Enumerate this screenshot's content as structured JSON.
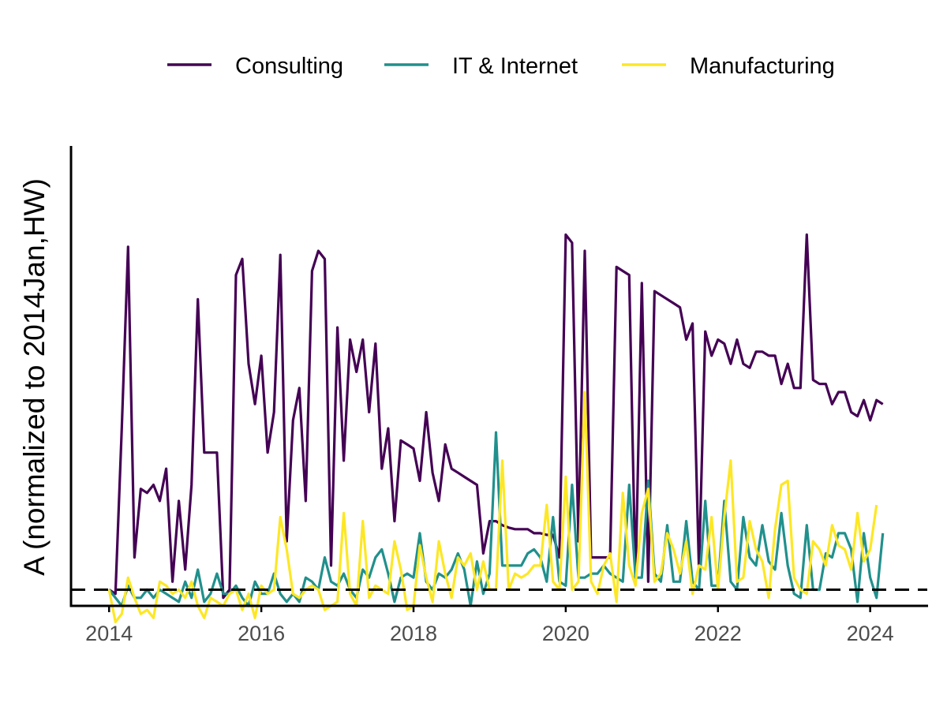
{
  "chart_data": {
    "type": "line",
    "title": "",
    "xlabel": "",
    "ylabel": "A (normalized to 2014Jan,HW)",
    "xlim": [
      2013.5,
      2024.75
    ],
    "ylim": [
      -0.2,
      5.5
    ],
    "x_ticks": [
      2014,
      2016,
      2018,
      2020,
      2022,
      2024
    ],
    "x_tick_labels": [
      "2014",
      "2016",
      "2018",
      "2020",
      "2022",
      "2024"
    ],
    "baseline": 0,
    "legend_position": "top",
    "grid": false,
    "x_start": 2014.0,
    "x_step": 0.0833333,
    "series": [
      {
        "name": "Consulting",
        "color": "#440154",
        "values": [
          0.0,
          -0.05,
          2.0,
          4.25,
          0.4,
          1.25,
          1.2,
          1.3,
          1.1,
          1.5,
          0.1,
          1.1,
          0.25,
          1.3,
          3.6,
          1.7,
          1.7,
          1.7,
          -0.1,
          0.0,
          3.9,
          4.1,
          2.8,
          2.3,
          2.9,
          1.7,
          2.2,
          4.15,
          0.6,
          2.1,
          2.5,
          1.1,
          3.95,
          4.2,
          4.1,
          0.3,
          3.25,
          1.6,
          3.1,
          2.7,
          3.1,
          2.2,
          3.05,
          1.5,
          2.0,
          0.85,
          1.85,
          1.8,
          1.75,
          1.35,
          2.2,
          1.45,
          1.1,
          1.8,
          1.5,
          1.45,
          1.4,
          1.35,
          1.3,
          0.45,
          0.85,
          0.85,
          0.8,
          0.77,
          0.75,
          0.75,
          0.75,
          0.7,
          0.7,
          0.68,
          0.68,
          0.4,
          4.4,
          4.3,
          0.6,
          4.2,
          0.4,
          0.4,
          0.4,
          0.4,
          4.0,
          3.95,
          3.9,
          0.1,
          3.8,
          0.1,
          3.7,
          3.65,
          3.6,
          3.55,
          3.5,
          3.1,
          3.3,
          0.25,
          3.2,
          2.9,
          3.1,
          3.05,
          2.8,
          3.1,
          2.8,
          2.75,
          2.95,
          2.95,
          2.9,
          2.9,
          2.55,
          2.8,
          2.5,
          2.5,
          4.4,
          2.6,
          2.55,
          2.55,
          2.3,
          2.45,
          2.45,
          2.2,
          2.15,
          2.35,
          2.1,
          2.35,
          2.3
        ]
      },
      {
        "name": "IT & Internet",
        "color": "#21908C",
        "values": [
          0.0,
          -0.1,
          -0.2,
          0.05,
          -0.1,
          -0.1,
          0.0,
          -0.1,
          0.0,
          -0.05,
          -0.1,
          -0.15,
          0.1,
          -0.1,
          0.25,
          -0.15,
          -0.05,
          0.2,
          -0.05,
          -0.05,
          0.05,
          -0.1,
          -0.2,
          0.1,
          -0.05,
          -0.05,
          0.2,
          -0.05,
          -0.15,
          -0.05,
          -0.15,
          0.15,
          0.1,
          0.0,
          0.4,
          0.1,
          0.05,
          0.2,
          0.0,
          -0.1,
          0.25,
          0.15,
          0.4,
          0.5,
          0.2,
          -0.15,
          0.15,
          0.2,
          0.15,
          0.7,
          0.1,
          0.0,
          0.2,
          0.15,
          0.25,
          0.45,
          0.25,
          -0.2,
          0.35,
          -0.05,
          0.2,
          1.95,
          0.3,
          0.3,
          0.3,
          0.3,
          0.45,
          0.5,
          0.4,
          0.1,
          0.9,
          0.1,
          0.05,
          1.3,
          0.15,
          0.15,
          0.2,
          0.2,
          0.3,
          0.2,
          0.15,
          0.1,
          1.3,
          0.15,
          0.15,
          1.35,
          0.2,
          0.1,
          0.8,
          0.1,
          0.1,
          0.85,
          0.1,
          0.0,
          1.1,
          0.05,
          0.05,
          1.1,
          0.1,
          0.0,
          0.9,
          0.4,
          0.3,
          0.8,
          0.35,
          0.25,
          0.95,
          0.3,
          -0.05,
          -0.1,
          0.8,
          0.0,
          0.0,
          0.45,
          0.4,
          0.7,
          0.7,
          0.5,
          -0.15,
          0.7,
          0.15,
          -0.1,
          0.7
        ]
      },
      {
        "name": "Manufacturing",
        "color": "#FDE725",
        "values": [
          0.0,
          -0.4,
          -0.3,
          0.15,
          -0.1,
          -0.3,
          -0.25,
          -0.35,
          0.1,
          0.05,
          -0.05,
          0.0,
          -0.1,
          0.1,
          -0.2,
          -0.35,
          -0.1,
          -0.15,
          -0.2,
          -0.05,
          0.0,
          -0.25,
          -0.05,
          -0.35,
          0.05,
          -0.05,
          0.0,
          0.9,
          0.5,
          -0.05,
          -0.1,
          0.0,
          0.05,
          0.0,
          -0.25,
          -0.2,
          -0.15,
          0.95,
          -0.05,
          -0.2,
          0.85,
          -0.1,
          0.05,
          0.0,
          -0.05,
          0.6,
          0.25,
          -0.25,
          -0.2,
          0.55,
          0.15,
          -0.15,
          0.6,
          0.2,
          -0.1,
          0.4,
          0.3,
          0.45,
          0.0,
          0.35,
          0.0,
          0.0,
          1.6,
          0.0,
          0.2,
          0.15,
          0.2,
          0.3,
          0.3,
          1.05,
          0.1,
          0.0,
          1.4,
          0.0,
          0.1,
          2.45,
          0.1,
          -0.05,
          0.3,
          0.45,
          -0.15,
          1.2,
          0.3,
          0.05,
          0.95,
          1.25,
          0.1,
          0.2,
          0.7,
          0.5,
          0.2,
          0.6,
          -0.05,
          0.3,
          0.25,
          0.9,
          0.0,
          0.9,
          1.6,
          0.1,
          0.15,
          0.85,
          0.5,
          0.35,
          -0.1,
          0.75,
          1.3,
          1.35,
          0.15,
          0.0,
          -0.05,
          0.6,
          0.5,
          0.3,
          0.8,
          0.55,
          0.5,
          0.25,
          0.95,
          0.35,
          0.5,
          1.05
        ]
      }
    ]
  }
}
